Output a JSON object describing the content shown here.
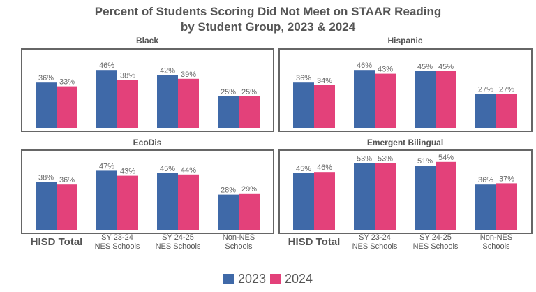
{
  "chart_data": {
    "type": "bar",
    "title_line1": "Percent of Students Scoring Did Not Meet on STAAR Reading",
    "title_line2": "by Student Group, 2023 & 2024",
    "categories": [
      "HISD Total",
      "SY 23-24 NES Schools",
      "SY 24-25 NES Schools",
      "Non-NES Schools"
    ],
    "category_lines": [
      [
        "HISD Total"
      ],
      [
        "SY 23-24",
        "NES Schools"
      ],
      [
        "SY 24-25",
        "NES Schools"
      ],
      [
        "Non-NES",
        "Schools"
      ]
    ],
    "legend": [
      {
        "name": "2023",
        "color": "#3f69a8"
      },
      {
        "name": "2024",
        "color": "#e3417a"
      }
    ],
    "panels": [
      {
        "title": "Black",
        "series": [
          {
            "name": "2023",
            "values": [
              36,
              46,
              42,
              25
            ]
          },
          {
            "name": "2024",
            "values": [
              33,
              38,
              39,
              25
            ]
          }
        ]
      },
      {
        "title": "Hispanic",
        "series": [
          {
            "name": "2023",
            "values": [
              36,
              46,
              45,
              27
            ]
          },
          {
            "name": "2024",
            "values": [
              34,
              43,
              45,
              27
            ]
          }
        ]
      },
      {
        "title": "EcoDis",
        "series": [
          {
            "name": "2023",
            "values": [
              38,
              47,
              45,
              28
            ]
          },
          {
            "name": "2024",
            "values": [
              36,
              43,
              44,
              29
            ]
          }
        ]
      },
      {
        "title": "Emergent Bilingual",
        "series": [
          {
            "name": "2023",
            "values": [
              45,
              53,
              51,
              36
            ]
          },
          {
            "name": "2024",
            "values": [
              46,
              53,
              54,
              37
            ]
          }
        ]
      }
    ],
    "value_suffix": "%",
    "ylim": [
      0,
      60
    ]
  }
}
